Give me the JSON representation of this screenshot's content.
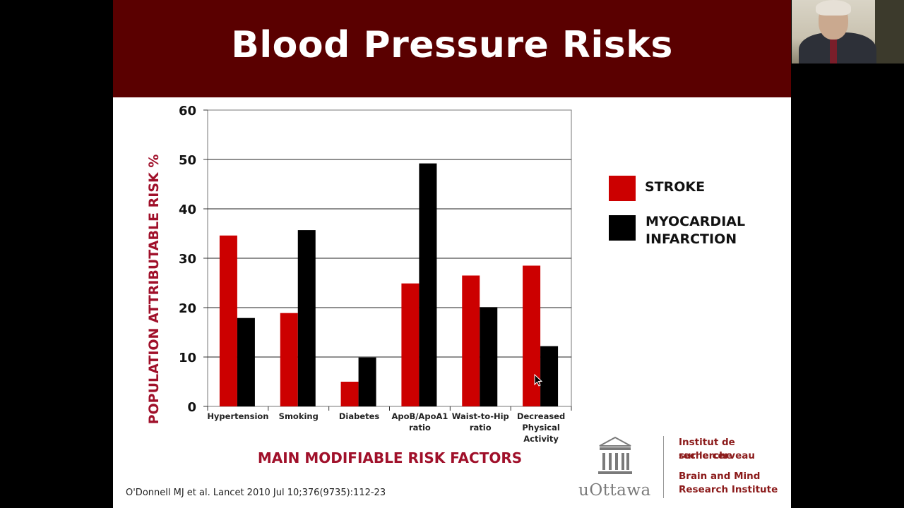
{
  "slide": {
    "title": "Blood Pressure Risks",
    "citation": "O'Donnell MJ et al. Lancet 2010 Jul 10;376(9735):112-23"
  },
  "logo": {
    "name": "uOttawa",
    "institute_fr_line1": "Institut de recherche",
    "institute_fr_line2": "sur le cerveau",
    "institute_en_line1": "Brain and Mind",
    "institute_en_line2": "Research Institute"
  },
  "colors": {
    "title_bar": "#5a0000",
    "stroke": "#cc0000",
    "mi": "#000000",
    "label_red": "#a0102a"
  },
  "chart_data": {
    "type": "bar",
    "xlabel": "MAIN MODIFIABLE RISK FACTORS",
    "ylabel": "POPULATION ATTRIBUTABLE RISK %",
    "ylim": [
      0,
      60
    ],
    "yticks": [
      0,
      10,
      20,
      30,
      40,
      50,
      60
    ],
    "grid": true,
    "legend_position": "right",
    "categories": [
      [
        "Hypertension"
      ],
      [
        "Smoking"
      ],
      [
        "Diabetes"
      ],
      [
        "ApoB/ApoA1",
        "ratio"
      ],
      [
        "Waist-to-Hip",
        "ratio"
      ],
      [
        "Decreased",
        "Physical",
        "Activity"
      ]
    ],
    "series": [
      {
        "name": "STROKE",
        "values": [
          34.6,
          18.9,
          5.0,
          24.9,
          26.5,
          28.5
        ]
      },
      {
        "name": "MYOCARDIAL INFARCTION",
        "values": [
          17.9,
          35.7,
          9.9,
          49.2,
          20.1,
          12.2
        ]
      }
    ]
  }
}
